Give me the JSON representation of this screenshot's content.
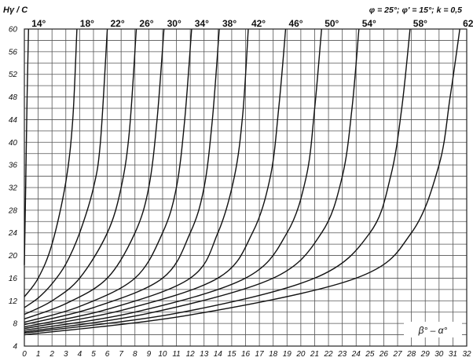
{
  "chart_data": {
    "type": "line",
    "title": "",
    "ylabel": "Hγ / C",
    "xlabel": "β° – α°",
    "parameters_text": "φ = 25°; φ' = 15°; k = 0,5",
    "xlim": [
      0,
      32
    ],
    "ylim": [
      4,
      60
    ],
    "x_ticks": [
      "0",
      "1",
      "2",
      "3",
      "4",
      "5",
      "6",
      "7",
      "8",
      "9",
      "10",
      "11",
      "12",
      "13",
      "14",
      "15",
      "16",
      "17",
      "18",
      "19",
      "20",
      "21",
      "22",
      "23",
      "24",
      "25",
      "26",
      "27",
      "28",
      "29",
      "30",
      "31",
      "32"
    ],
    "y_ticks": [
      "4",
      "8",
      "12",
      "16",
      "20",
      "24",
      "28",
      "32",
      "36",
      "40",
      "44",
      "48",
      "52",
      "56",
      "60"
    ],
    "grid": true,
    "colors": {
      "line": "#111111",
      "grid": "#555555",
      "background": "#ffffff"
    },
    "series": [
      {
        "name": "14°",
        "x": [
          0,
          0.1,
          0.2,
          0.3
        ],
        "y": [
          18.3,
          33,
          48,
          60
        ]
      },
      {
        "name": "18°",
        "x": [
          0,
          1,
          2,
          3,
          3.5,
          3.8
        ],
        "y": [
          12.7,
          16,
          22,
          33,
          44,
          60
        ]
      },
      {
        "name": "22°",
        "x": [
          0,
          1,
          2,
          3,
          4,
          5,
          5.5,
          6
        ],
        "y": [
          10.8,
          12.5,
          15,
          18.5,
          24,
          32,
          40,
          60
        ]
      },
      {
        "name": "26°",
        "x": [
          0,
          2,
          4,
          6,
          7,
          7.6,
          8.1
        ],
        "y": [
          9.6,
          12,
          16,
          24,
          32,
          42,
          60
        ]
      },
      {
        "name": "30°",
        "x": [
          0,
          3,
          6,
          8,
          9,
          9.6,
          10.1
        ],
        "y": [
          8.8,
          11.5,
          16,
          24,
          32,
          44,
          60
        ]
      },
      {
        "name": "34°",
        "x": [
          0,
          4,
          8,
          10,
          11,
          11.6,
          12.1
        ],
        "y": [
          8.2,
          11,
          16,
          24,
          32,
          44,
          60
        ]
      },
      {
        "name": "38°",
        "x": [
          0,
          5,
          10,
          12,
          13,
          13.6,
          14.1
        ],
        "y": [
          7.8,
          10.8,
          16,
          24,
          32,
          44,
          60
        ]
      },
      {
        "name": "42°",
        "x": [
          0,
          6,
          12,
          14,
          15.2,
          15.8,
          16.2
        ],
        "y": [
          7.4,
          10.5,
          16,
          24,
          34,
          45,
          60
        ]
      },
      {
        "name": "46°",
        "x": [
          0,
          7,
          14,
          16.5,
          17.8,
          18.4,
          18.9
        ],
        "y": [
          7.1,
          10.3,
          16,
          24,
          34,
          46,
          60
        ]
      },
      {
        "name": "50°",
        "x": [
          0,
          8,
          16,
          19,
          20.4,
          21,
          21.5
        ],
        "y": [
          6.8,
          10,
          16,
          24,
          34,
          46,
          60
        ]
      },
      {
        "name": "54°",
        "x": [
          0,
          9,
          18,
          21.5,
          23,
          23.7,
          24.2
        ],
        "y": [
          6.5,
          9.8,
          16,
          24,
          34,
          46,
          60
        ]
      },
      {
        "name": "58°",
        "x": [
          0,
          11,
          21,
          25,
          26.5,
          27.3,
          27.9
        ],
        "y": [
          6.3,
          9.8,
          16,
          24,
          34,
          46,
          60
        ]
      },
      {
        "name": "62°",
        "x": [
          0,
          12,
          24,
          28,
          30,
          30.8,
          31.5
        ],
        "y": [
          6.0,
          9.5,
          16,
          24,
          36,
          48,
          60
        ]
      }
    ]
  }
}
